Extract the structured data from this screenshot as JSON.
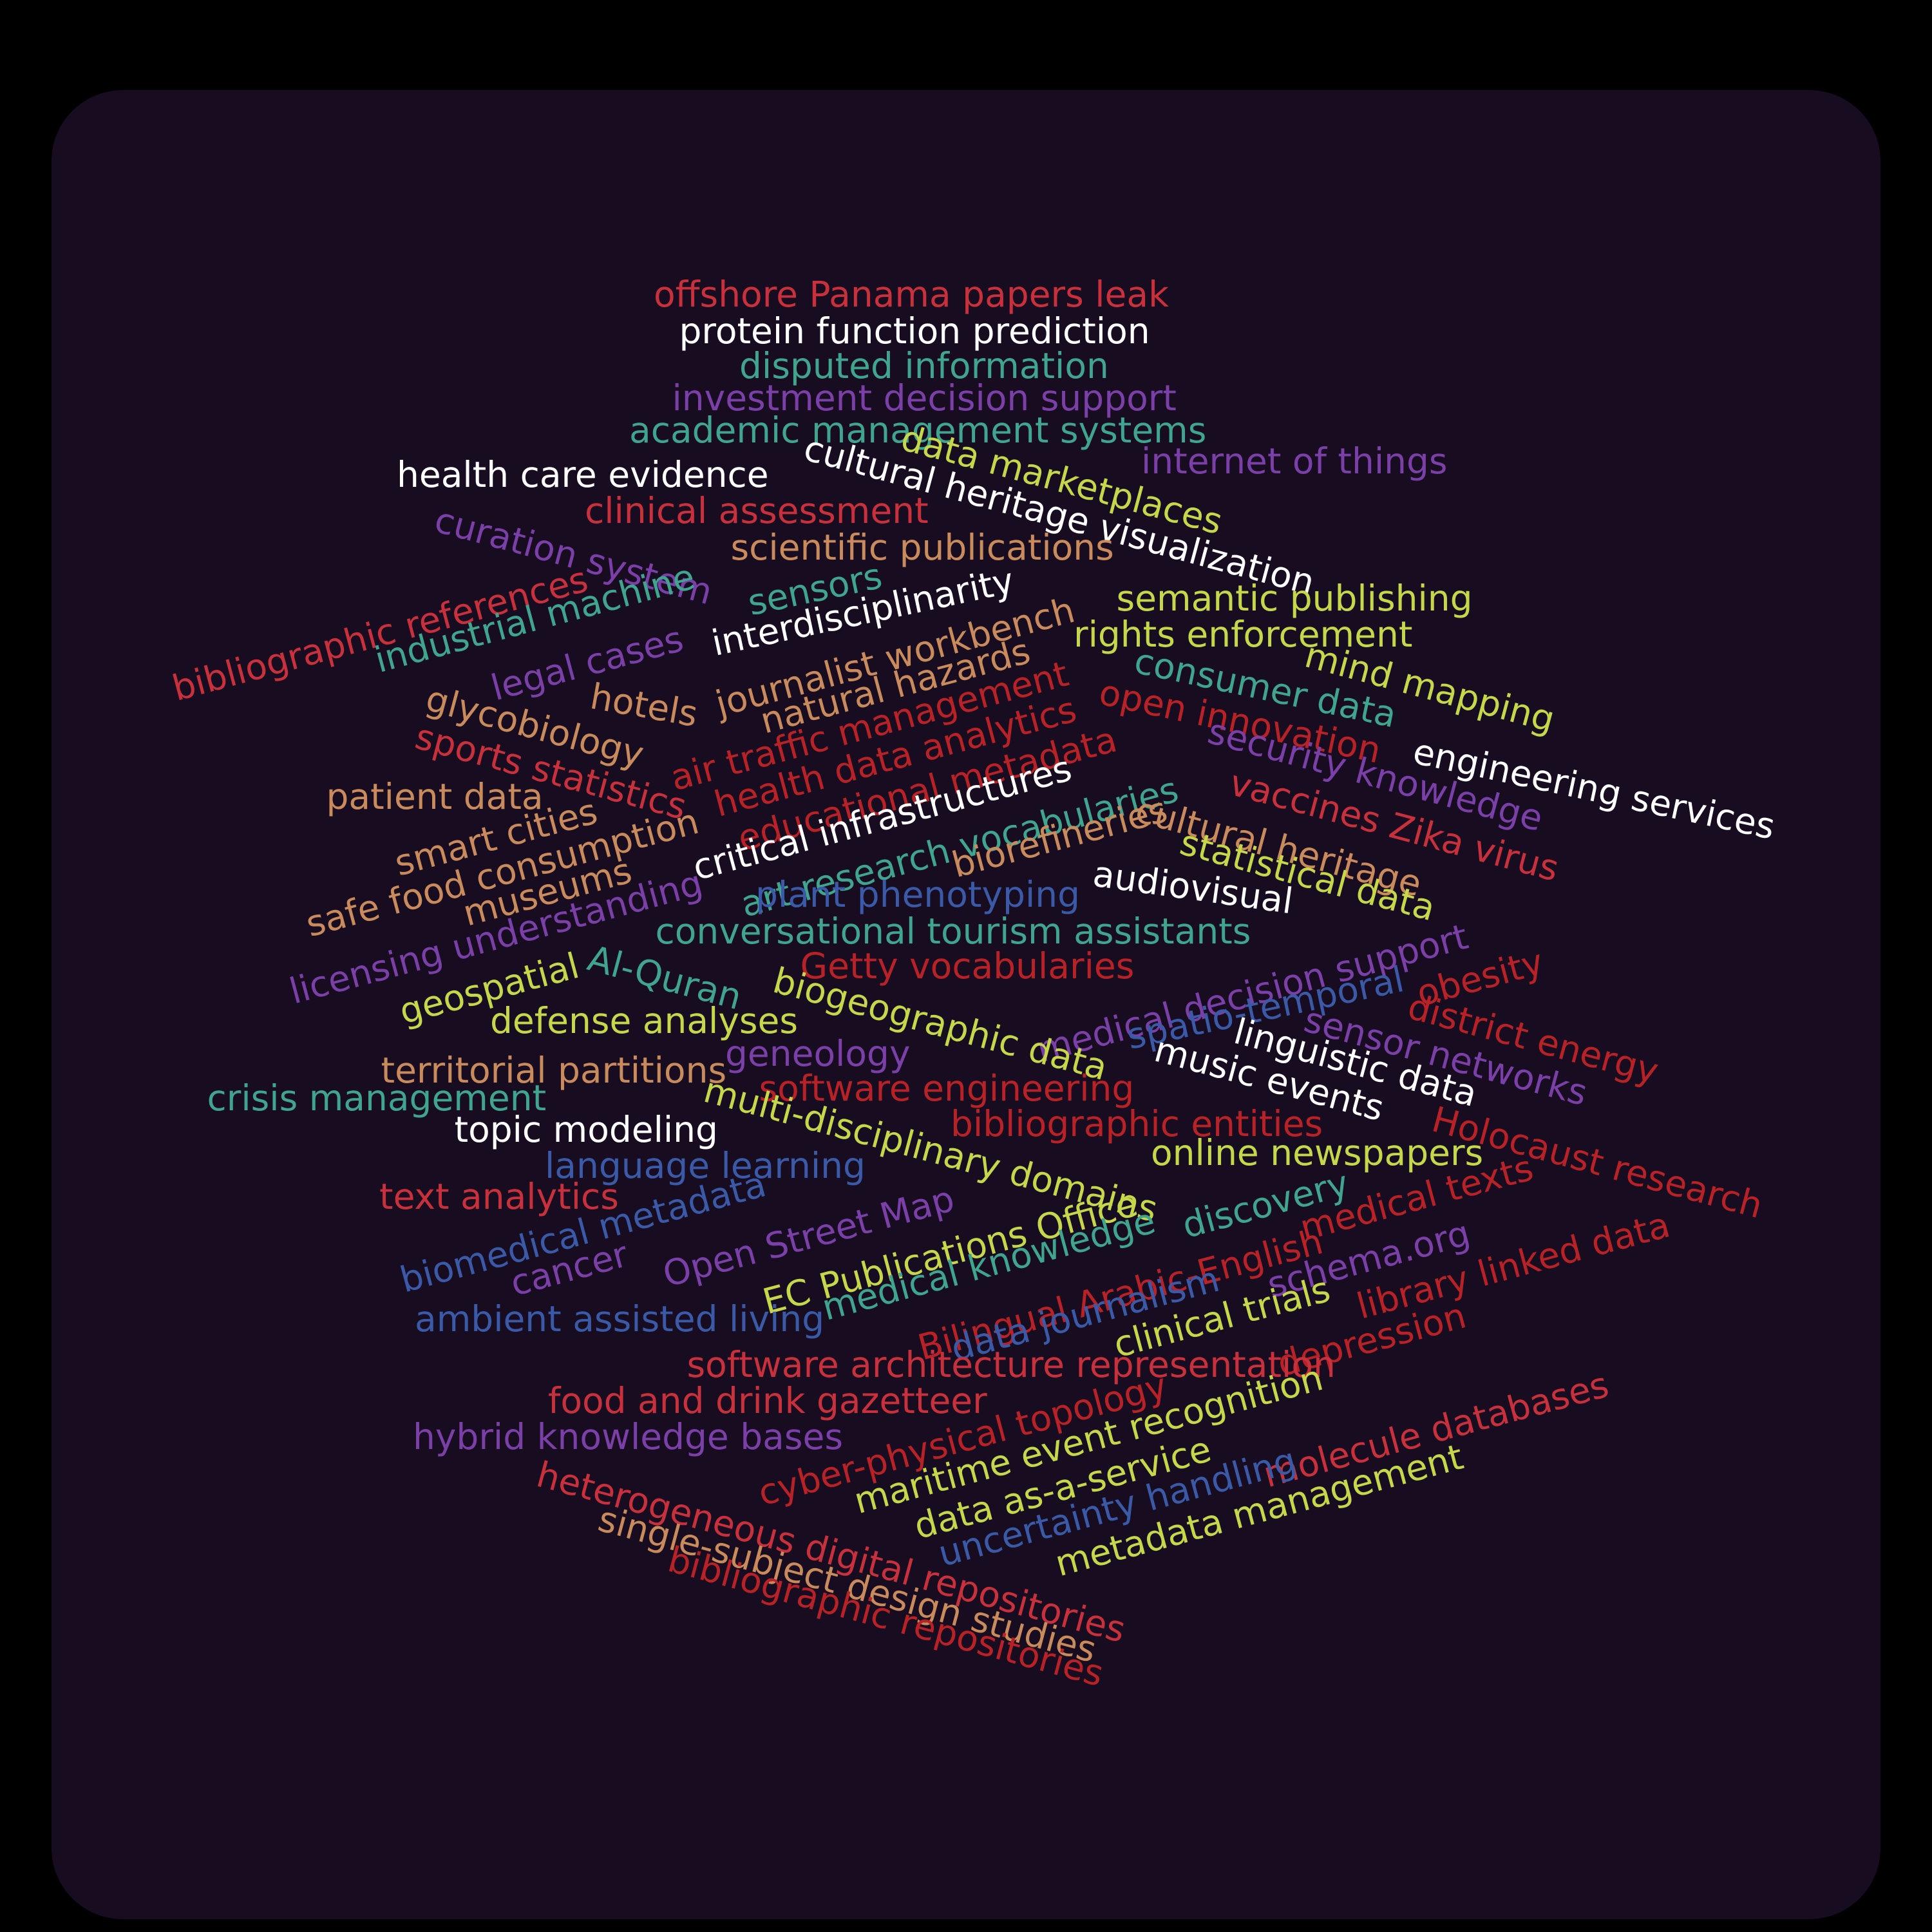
{
  "palette": {
    "background": "#000000",
    "panel": "#170c20",
    "white": "#ffffff",
    "red": "#c8303c",
    "dark_red": "#b82226",
    "teal": "#3fa58f",
    "purple": "#7b3fa8",
    "lime": "#c6d84a",
    "tan": "#c98b5c",
    "blue": "#3a5aa8"
  },
  "words": [
    {
      "text": "offshore Panama papers leak",
      "color": "red"
    },
    {
      "text": "protein function prediction",
      "color": "white"
    },
    {
      "text": "disputed information",
      "color": "teal"
    },
    {
      "text": "investment decision support",
      "color": "purple"
    },
    {
      "text": "academic management systems",
      "color": "teal"
    },
    {
      "text": "health care evidence",
      "color": "white"
    },
    {
      "text": "cultural heritage visualization",
      "color": "white"
    },
    {
      "text": "data marketplaces",
      "color": "lime"
    },
    {
      "text": "internet of things",
      "color": "purple"
    },
    {
      "text": "clinical assessment",
      "color": "red"
    },
    {
      "text": "curation system",
      "color": "purple"
    },
    {
      "text": "scientific publications",
      "color": "tan"
    },
    {
      "text": "sensors",
      "color": "teal"
    },
    {
      "text": "bibliographic references",
      "color": "red"
    },
    {
      "text": "industrial machine",
      "color": "teal"
    },
    {
      "text": "interdisciplinarity",
      "color": "white"
    },
    {
      "text": "semantic publishing",
      "color": "lime"
    },
    {
      "text": "legal cases",
      "color": "purple"
    },
    {
      "text": "journalist workbench",
      "color": "tan"
    },
    {
      "text": "rights enforcement",
      "color": "lime"
    },
    {
      "text": "consumer data",
      "color": "teal"
    },
    {
      "text": "mind mapping",
      "color": "lime"
    },
    {
      "text": "natural hazards",
      "color": "tan"
    },
    {
      "text": "hotels",
      "color": "tan"
    },
    {
      "text": "glycobiology",
      "color": "tan"
    },
    {
      "text": "air traffic management",
      "color": "dark_red"
    },
    {
      "text": "open innovation",
      "color": "dark_red"
    },
    {
      "text": "engineering services",
      "color": "white"
    },
    {
      "text": "sports statistics",
      "color": "red"
    },
    {
      "text": "health data analytics",
      "color": "dark_red"
    },
    {
      "text": "security knowledge",
      "color": "purple"
    },
    {
      "text": "patient data",
      "color": "tan"
    },
    {
      "text": "educational metadata",
      "color": "dark_red"
    },
    {
      "text": "vaccines Zika virus",
      "color": "red"
    },
    {
      "text": "smart cities",
      "color": "tan"
    },
    {
      "text": "critical infrastructures",
      "color": "white"
    },
    {
      "text": "art research vocabularies",
      "color": "teal"
    },
    {
      "text": "cultural heritage",
      "color": "tan"
    },
    {
      "text": "safe food consumption",
      "color": "tan"
    },
    {
      "text": "biorefineries",
      "color": "tan"
    },
    {
      "text": "statistical data",
      "color": "lime"
    },
    {
      "text": "museums",
      "color": "tan"
    },
    {
      "text": "audiovisual",
      "color": "white"
    },
    {
      "text": "plant phenotyping",
      "color": "blue"
    },
    {
      "text": "licensing understanding",
      "color": "purple"
    },
    {
      "text": "conversational tourism assistants",
      "color": "teal"
    },
    {
      "text": "medical decision support",
      "color": "purple"
    },
    {
      "text": "Getty vocabularies",
      "color": "dark_red"
    },
    {
      "text": "obesity",
      "color": "dark_red"
    },
    {
      "text": "geospatial",
      "color": "lime"
    },
    {
      "text": "Al-Quran",
      "color": "teal"
    },
    {
      "text": "biogeographic data",
      "color": "lime"
    },
    {
      "text": "spatio-temporal",
      "color": "blue"
    },
    {
      "text": "district energy",
      "color": "dark_red"
    },
    {
      "text": "defense analyses",
      "color": "lime"
    },
    {
      "text": "linguistic data",
      "color": "white"
    },
    {
      "text": "sensor networks",
      "color": "purple"
    },
    {
      "text": "geneology",
      "color": "purple"
    },
    {
      "text": "territorial partitions",
      "color": "tan"
    },
    {
      "text": "music events",
      "color": "white"
    },
    {
      "text": "crisis management",
      "color": "teal"
    },
    {
      "text": "software engineering",
      "color": "dark_red"
    },
    {
      "text": "Holocaust research",
      "color": "dark_red"
    },
    {
      "text": "topic modeling",
      "color": "white"
    },
    {
      "text": "multi-disciplinary domains",
      "color": "lime"
    },
    {
      "text": "bibliographic entities",
      "color": "dark_red"
    },
    {
      "text": "online newspapers",
      "color": "lime"
    },
    {
      "text": "language learning",
      "color": "blue"
    },
    {
      "text": "text analytics",
      "color": "red"
    },
    {
      "text": "discovery",
      "color": "teal"
    },
    {
      "text": "medical texts",
      "color": "dark_red"
    },
    {
      "text": "biomedical metadata",
      "color": "blue"
    },
    {
      "text": "Open Street Map",
      "color": "purple"
    },
    {
      "text": "EC Publications Office",
      "color": "lime"
    },
    {
      "text": "medical knowledge",
      "color": "teal"
    },
    {
      "text": "schema.org",
      "color": "purple"
    },
    {
      "text": "library linked data",
      "color": "dark_red"
    },
    {
      "text": "cancer",
      "color": "purple"
    },
    {
      "text": "Bilingual Arabic-English",
      "color": "dark_red"
    },
    {
      "text": "ambient assisted living",
      "color": "blue"
    },
    {
      "text": "data journalism",
      "color": "blue"
    },
    {
      "text": "clinical trials",
      "color": "lime"
    },
    {
      "text": "depression",
      "color": "dark_red"
    },
    {
      "text": "software architecture representation",
      "color": "red"
    },
    {
      "text": "food and drink gazetteer",
      "color": "red"
    },
    {
      "text": "cyber-physical topology",
      "color": "dark_red"
    },
    {
      "text": "hybrid knowledge bases",
      "color": "purple"
    },
    {
      "text": "maritime event recognition",
      "color": "lime"
    },
    {
      "text": "molecule databases",
      "color": "red"
    },
    {
      "text": "data as-a-service",
      "color": "lime"
    },
    {
      "text": "uncertainty handling",
      "color": "blue"
    },
    {
      "text": "metadata management",
      "color": "lime"
    },
    {
      "text": "heterogeneous digital repositories",
      "color": "red"
    },
    {
      "text": "single-subject design studies",
      "color": "tan"
    },
    {
      "text": "bibliographic repositories",
      "color": "dark_red"
    }
  ]
}
